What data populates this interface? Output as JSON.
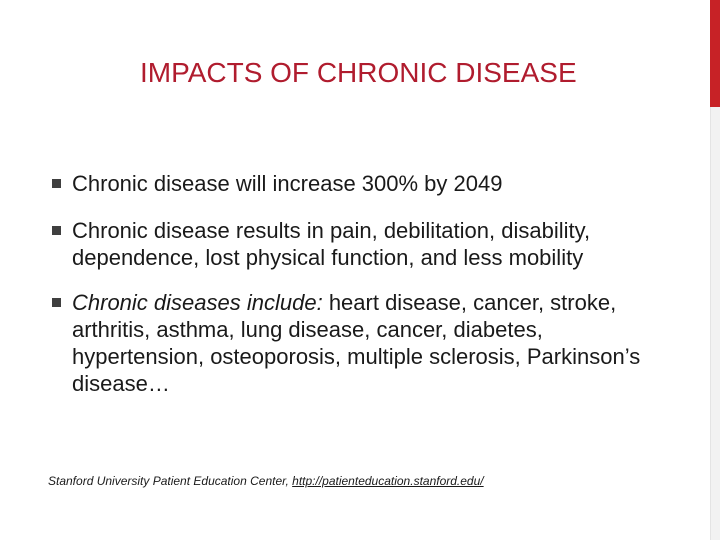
{
  "slide": {
    "title": "IMPACTS OF CHRONIC DISEASE",
    "bullets": [
      {
        "lead": "",
        "text": "Chronic disease will increase 300% by 2049"
      },
      {
        "lead": "",
        "text": "Chronic disease results in pain, debilitation, disability, dependence, lost physical function, and less mobility"
      },
      {
        "lead": "Chronic diseases include:",
        "text": " heart disease, cancer, stroke, arthritis, asthma, lung disease, cancer, diabetes, hypertension, osteoporosis, multiple sclerosis, Parkinson’s disease…"
      }
    ],
    "citation": {
      "text": "Stanford  University Patient Education Center, ",
      "link": "http://patienteducation.stanford.edu/"
    }
  },
  "colors": {
    "title": "#b01c2e",
    "accent_bar": "#c72226",
    "text": "#1a1a1a"
  }
}
